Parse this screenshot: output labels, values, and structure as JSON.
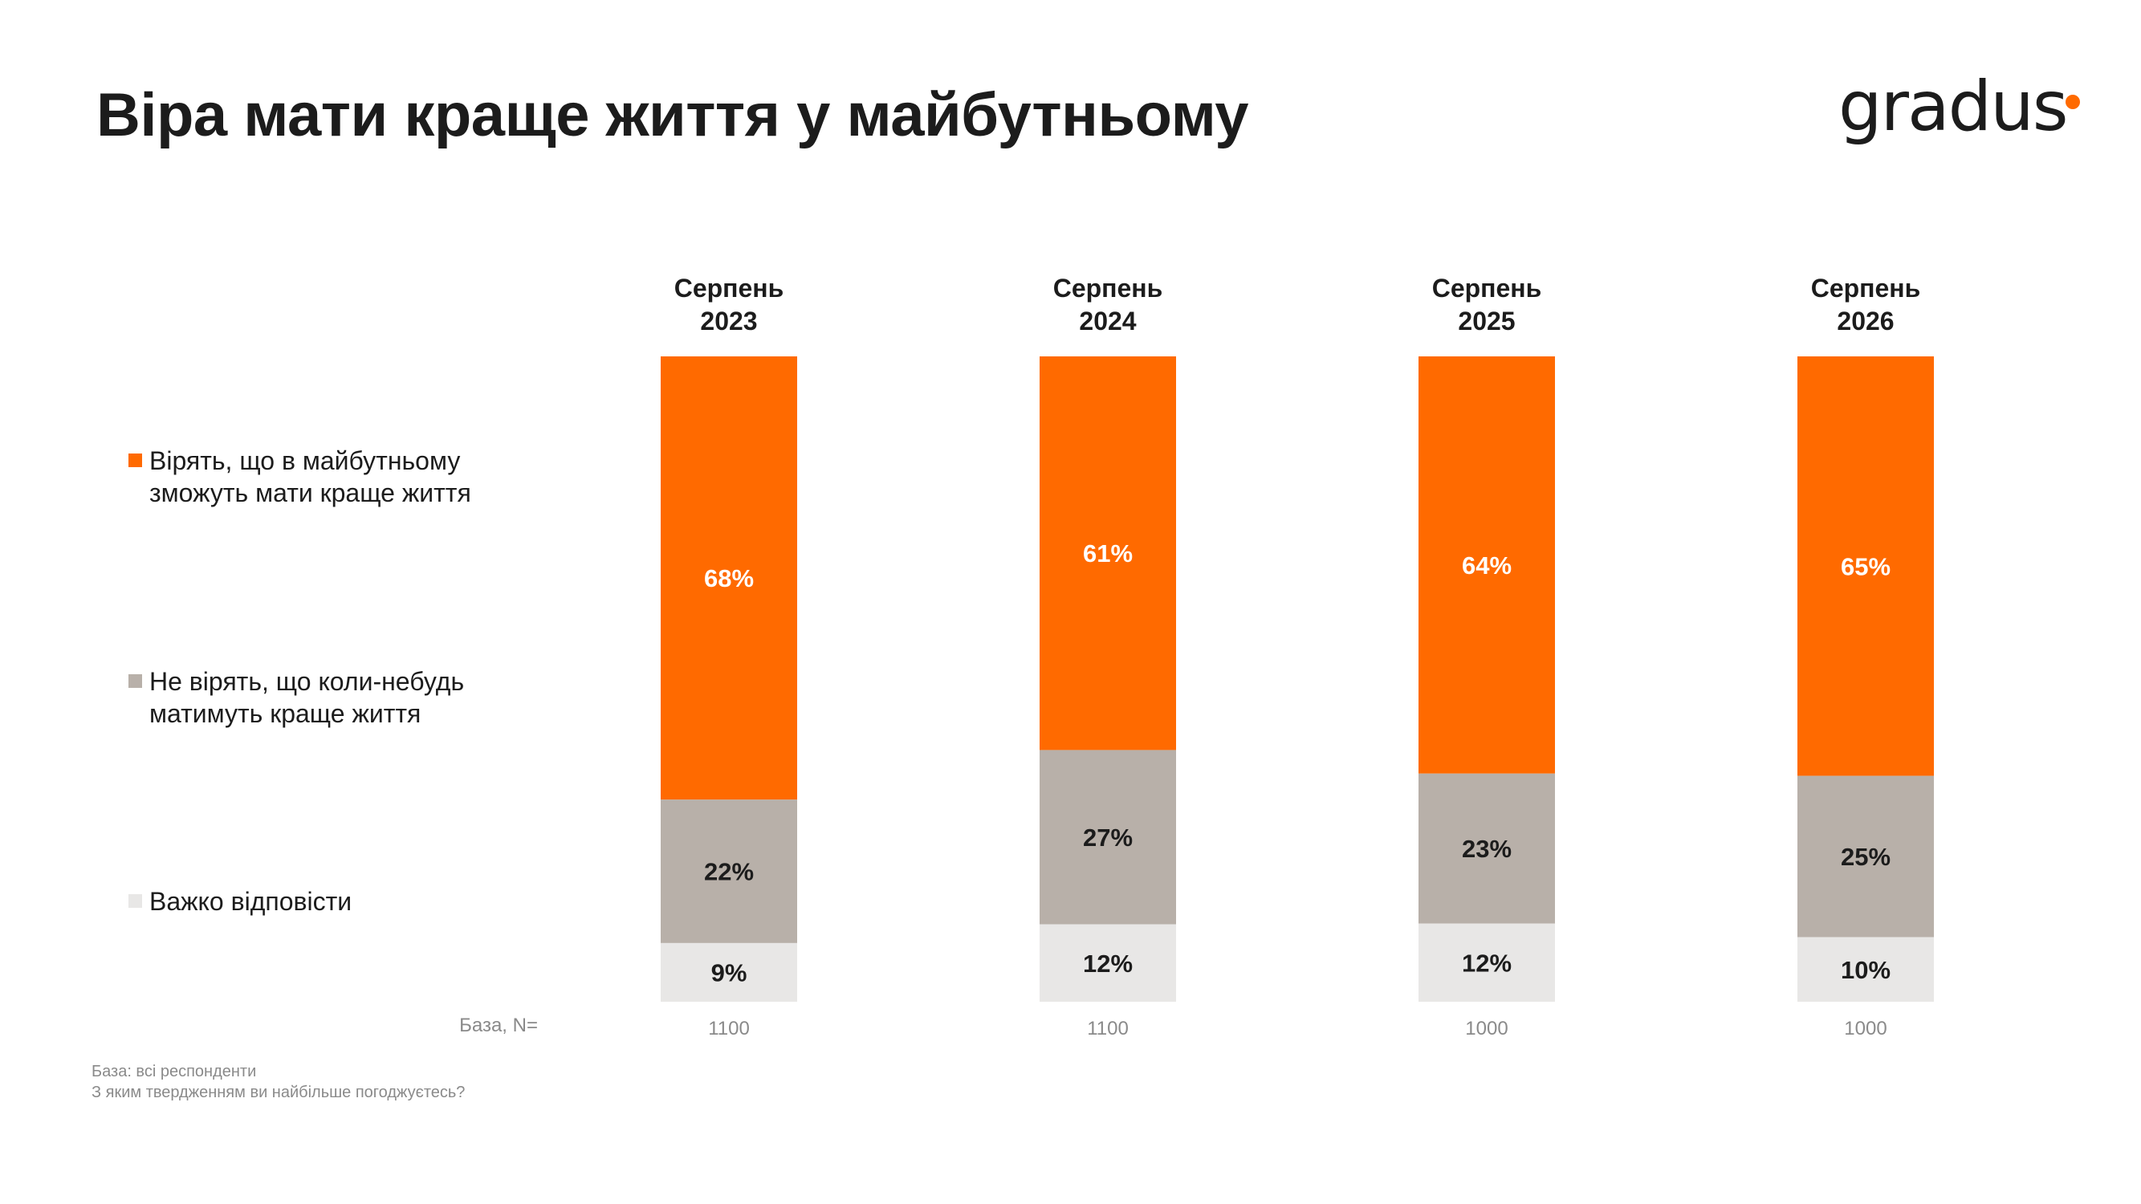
{
  "title": "Віра мати краще життя у майбутньому",
  "logo": {
    "text": "gradus",
    "dot_color": "#ff6a00"
  },
  "legend": [
    {
      "label": "Вірять, що в майбутньому\nзможуть мати краще життя",
      "color": "#ff6a00"
    },
    {
      "label": "Не вірять, що коли-небудь\nматимуть краще життя",
      "color": "#b8b0a9"
    },
    {
      "label": "Важко відповісти",
      "color": "#e8e7e6"
    }
  ],
  "base_label": "База, N=",
  "footnotes": {
    "line1": "База: всі респонденти",
    "line2": "З яким твердженням ви найбільше погоджуєтесь?"
  },
  "chart_data": {
    "type": "bar",
    "stacked": true,
    "normalized": true,
    "categories": [
      "Серпень 2023",
      "Серпень 2024",
      "Серпень 2025",
      "Серпень 2026"
    ],
    "category_lines": [
      [
        "Серпень",
        "2023"
      ],
      [
        "Серпень",
        "2024"
      ],
      [
        "Серпень",
        "2025"
      ],
      [
        "Серпень",
        "2026"
      ]
    ],
    "series": [
      {
        "name": "Вірять, що в майбутньому зможуть мати краще життя",
        "values": [
          68,
          61,
          64,
          65
        ],
        "color": "#ff6a00",
        "label_color": "#ffffff"
      },
      {
        "name": "Не вірять, що коли-небудь матимуть краще життя",
        "values": [
          22,
          27,
          23,
          25
        ],
        "color": "#b8b0a9",
        "label_color": "#1c1c1c"
      },
      {
        "name": "Важко відповісти",
        "values": [
          9,
          12,
          12,
          10
        ],
        "color": "#e8e7e6",
        "label_color": "#1c1c1c"
      }
    ],
    "value_suffix": "%",
    "base_n": [
      "1100",
      "1100",
      "1000",
      "1000"
    ],
    "legend_position": "left",
    "grid": false
  }
}
